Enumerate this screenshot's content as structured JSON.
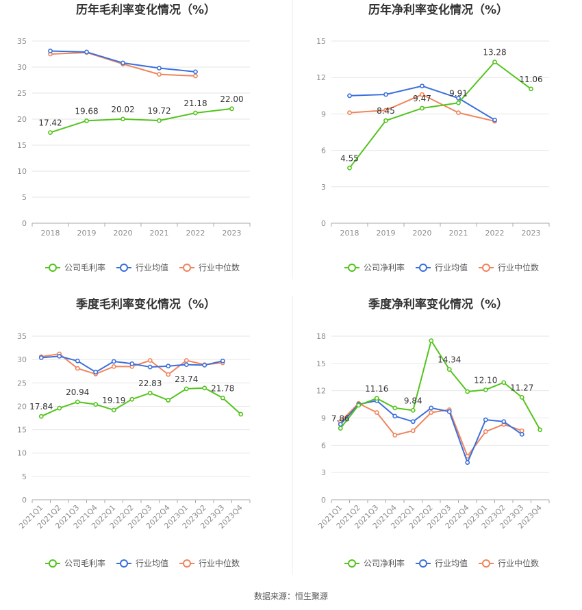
{
  "source": "数据来源：恒生聚源",
  "chart_data": [
    {
      "type": "line",
      "title": "历年毛利率变化情况（%）",
      "categories": [
        "2018",
        "2019",
        "2020",
        "2021",
        "2022",
        "2023"
      ],
      "ylim": [
        0,
        35
      ],
      "yticks": [
        0,
        5,
        10,
        15,
        20,
        25,
        30,
        35
      ],
      "grid": true,
      "legend_position": "bottom",
      "series": [
        {
          "name": "公司毛利率",
          "color": "#52c41a",
          "values": [
            17.42,
            19.68,
            20.02,
            19.72,
            21.18,
            22.0
          ],
          "labels": [
            "17.42",
            "19.68",
            "20.02",
            "19.72",
            "21.18",
            "22.00"
          ]
        },
        {
          "name": "行业均值",
          "color": "#3b6fdc",
          "values": [
            33.1,
            32.9,
            30.8,
            29.8,
            29.1,
            null
          ],
          "labels": []
        },
        {
          "name": "行业中位数",
          "color": "#f0845c",
          "values": [
            32.5,
            32.8,
            30.6,
            28.6,
            28.3,
            null
          ],
          "labels": []
        }
      ]
    },
    {
      "type": "line",
      "title": "历年净利率变化情况（%）",
      "categories": [
        "2018",
        "2019",
        "2020",
        "2021",
        "2022",
        "2023"
      ],
      "ylim": [
        0,
        15
      ],
      "yticks": [
        0,
        3,
        6,
        9,
        12,
        15
      ],
      "grid": true,
      "legend_position": "bottom",
      "series": [
        {
          "name": "公司净利率",
          "color": "#52c41a",
          "values": [
            4.55,
            8.45,
            9.47,
            9.91,
            13.28,
            11.06
          ],
          "labels": [
            "4.55",
            "8.45",
            "9.47",
            "9.91",
            "13.28",
            "11.06"
          ]
        },
        {
          "name": "行业均值",
          "color": "#3b6fdc",
          "values": [
            10.5,
            10.6,
            11.3,
            10.3,
            8.5,
            null
          ],
          "labels": []
        },
        {
          "name": "行业中位数",
          "color": "#f0845c",
          "values": [
            9.1,
            9.3,
            10.6,
            9.1,
            8.4,
            null
          ],
          "labels": []
        }
      ]
    },
    {
      "type": "line",
      "title": "季度毛利率变化情况（%）",
      "categories": [
        "2021Q1",
        "2021Q2",
        "2021Q3",
        "2021Q4",
        "2022Q1",
        "2022Q2",
        "2022Q3",
        "2022Q4",
        "2023Q1",
        "2023Q2",
        "2023Q3",
        "2023Q4"
      ],
      "ylim": [
        0,
        35
      ],
      "yticks": [
        0,
        5,
        10,
        15,
        20,
        25,
        30,
        35
      ],
      "grid": true,
      "legend_position": "bottom",
      "series": [
        {
          "name": "公司毛利率",
          "color": "#52c41a",
          "values": [
            17.84,
            19.6,
            20.94,
            20.4,
            19.19,
            21.5,
            22.83,
            21.3,
            23.74,
            23.9,
            21.78,
            18.3
          ],
          "labels": [
            "17.84",
            "",
            "20.94",
            "",
            "19.19",
            "",
            "22.83",
            "",
            "23.74",
            "",
            "21.78",
            ""
          ]
        },
        {
          "name": "行业均值",
          "color": "#3b6fdc",
          "values": [
            30.4,
            30.7,
            29.7,
            27.3,
            29.6,
            29.1,
            28.4,
            28.6,
            28.9,
            28.8,
            29.7,
            null
          ],
          "labels": []
        },
        {
          "name": "行业中位数",
          "color": "#f0845c",
          "values": [
            30.6,
            31.2,
            28.1,
            26.9,
            28.5,
            28.5,
            29.8,
            26.8,
            29.8,
            28.9,
            29.3,
            null
          ],
          "labels": []
        }
      ]
    },
    {
      "type": "line",
      "title": "季度净利率变化情况（%）",
      "categories": [
        "2021Q1",
        "2021Q2",
        "2021Q3",
        "2021Q4",
        "2022Q1",
        "2022Q2",
        "2022Q3",
        "2022Q4",
        "2023Q1",
        "2023Q2",
        "2023Q3",
        "2023Q4"
      ],
      "ylim": [
        0,
        18
      ],
      "yticks": [
        0,
        3,
        6,
        9,
        12,
        15,
        18
      ],
      "grid": true,
      "legend_position": "bottom",
      "series": [
        {
          "name": "公司净利率",
          "color": "#52c41a",
          "values": [
            7.86,
            10.4,
            11.16,
            10.1,
            9.84,
            17.5,
            14.34,
            11.9,
            12.1,
            12.9,
            11.27,
            7.7
          ],
          "labels": [
            "7.86",
            "",
            "11.16",
            "",
            "9.84",
            "",
            "14.34",
            "",
            "12.10",
            "",
            "11.27",
            ""
          ]
        },
        {
          "name": "行业均值",
          "color": "#3b6fdc",
          "values": [
            8.3,
            10.5,
            10.9,
            9.2,
            8.6,
            10.1,
            9.7,
            4.1,
            8.8,
            8.6,
            7.2,
            null
          ],
          "labels": []
        },
        {
          "name": "行业中位数",
          "color": "#f0845c",
          "values": [
            8.6,
            10.6,
            9.6,
            7.1,
            7.6,
            9.6,
            9.9,
            4.8,
            7.5,
            8.3,
            7.6,
            null
          ],
          "labels": []
        }
      ]
    }
  ]
}
